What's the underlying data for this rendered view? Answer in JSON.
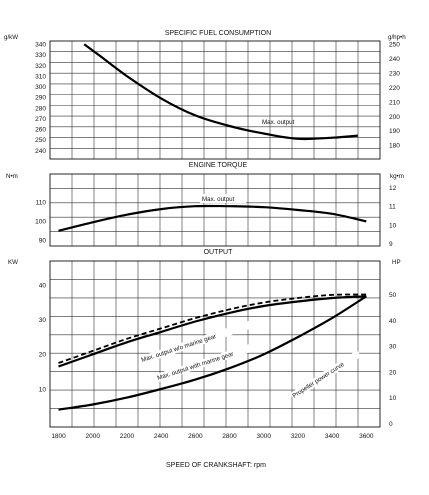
{
  "chart_data": [
    {
      "type": "line",
      "title": "SPECIFIC FUEL CONSUMPTION",
      "y_left_unit": "g/kW",
      "y_right_unit": "g/hp•h",
      "y_left_ticks": [
        340,
        330,
        320,
        310,
        300,
        290,
        280,
        270,
        260,
        250,
        240
      ],
      "y_right_ticks": [
        250,
        240,
        230,
        220,
        210,
        200,
        190,
        180
      ],
      "y_right_tick_values_left_units": [
        340,
        326.4,
        312.8,
        299.2,
        285.6,
        272,
        258.4,
        244.8
      ],
      "ylim": [
        232,
        343
      ],
      "xlim": [
        1750,
        3680
      ],
      "grid": true,
      "series": [
        {
          "name": "Max. output",
          "x": [
            1950,
            2050,
            2200,
            2400,
            2600,
            2800,
            3000,
            3200,
            3400,
            3550
          ],
          "y": [
            340,
            328,
            310,
            289,
            273,
            263,
            256,
            251,
            252,
            254
          ]
        }
      ]
    },
    {
      "type": "line",
      "title": "ENGINE TORQUE",
      "y_left_unit": "N•m",
      "y_right_unit": "kg•m",
      "y_left_ticks": [
        110,
        100,
        90
      ],
      "y_right_ticks": [
        12,
        11,
        10,
        9
      ],
      "y_right_tick_values_left_units": [
        117.7,
        107.9,
        98.1,
        88.3
      ],
      "ylim": [
        87,
        125
      ],
      "xlim": [
        1750,
        3680
      ],
      "grid": true,
      "series": [
        {
          "name": "Max. output",
          "x": [
            1800,
            2000,
            2200,
            2400,
            2600,
            2800,
            3000,
            3200,
            3400,
            3600
          ],
          "y": [
            95,
            99.5,
            103.5,
            106.5,
            108,
            108,
            107.5,
            106,
            104,
            100
          ]
        }
      ]
    },
    {
      "type": "line",
      "title": "OUTPUT",
      "y_left_unit": "KW",
      "y_right_unit": "HP",
      "y_left_ticks": [
        40,
        30,
        20,
        10
      ],
      "y_right_ticks": [
        50,
        40,
        30,
        20,
        10,
        0
      ],
      "y_right_tick_values_left_units": [
        37.3,
        29.8,
        22.4,
        14.9,
        7.5,
        0
      ],
      "ylim": [
        -1,
        47
      ],
      "xlim": [
        1750,
        3680
      ],
      "xlabel": "SPEED OF CRANKSHAFT: rpm",
      "x_ticks": [
        1800,
        2000,
        2200,
        2400,
        2600,
        2800,
        3000,
        3200,
        3400,
        3600
      ],
      "grid": true,
      "series": [
        {
          "name": "Max. output w/o marine gear",
          "style": "dashed",
          "x": [
            1800,
            2000,
            2200,
            2400,
            2600,
            2800,
            3000,
            3200,
            3400,
            3600
          ],
          "y": [
            17.5,
            21,
            24.5,
            27.5,
            30.5,
            33,
            35,
            36.3,
            37.2,
            37.3
          ]
        },
        {
          "name": "Max. output with marine gear",
          "x": [
            1800,
            2000,
            2200,
            2400,
            2600,
            2800,
            3000,
            3200,
            3400,
            3600
          ],
          "y": [
            16.5,
            20,
            23.5,
            26.5,
            29.5,
            32,
            34,
            35.3,
            36.3,
            36.8
          ]
        },
        {
          "name": "Propeller power curve",
          "x": [
            1800,
            2000,
            2200,
            2400,
            2600,
            2800,
            3000,
            3200,
            3400,
            3600
          ],
          "y": [
            4,
            5.5,
            7.5,
            10,
            12.7,
            16,
            20,
            25,
            30.5,
            36.8
          ]
        }
      ]
    }
  ]
}
